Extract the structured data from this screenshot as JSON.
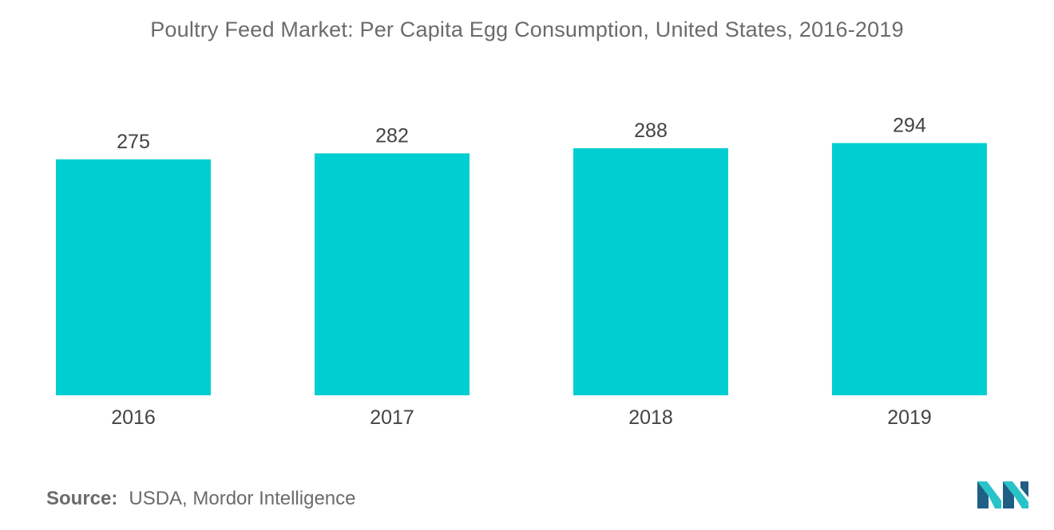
{
  "title": "Poultry Feed Market: Per Capita Egg Consumption, United States, 2016-2019",
  "source": {
    "key": "Source:",
    "value": "USDA, Mordor Intelligence"
  },
  "colors": {
    "bar": "#00CED1",
    "logo_dark": "#1f5f86",
    "logo_light": "#27c3c9"
  },
  "logo_icon": "mordor-intelligence-logo-icon",
  "chart_data": {
    "type": "bar",
    "title": "Poultry Feed Market: Per Capita Egg Consumption, United States, 2016-2019",
    "categories": [
      "2016",
      "2017",
      "2018",
      "2019"
    ],
    "values": [
      275,
      282,
      288,
      294
    ],
    "data_labels": [
      "275",
      "282",
      "288",
      "294"
    ],
    "xlabel": "",
    "ylabel": "",
    "ylim": [
      0,
      340
    ],
    "grid": false,
    "legend": "none"
  }
}
